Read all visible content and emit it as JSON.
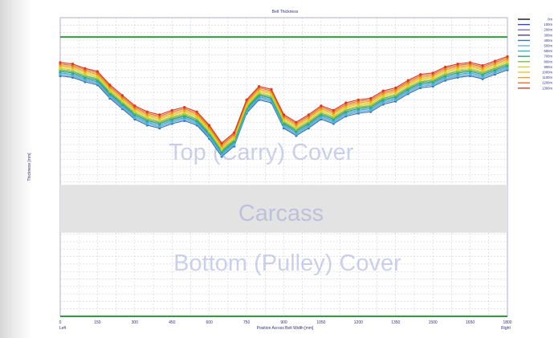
{
  "chart_data": {
    "type": "line",
    "title": "Belt Thickness",
    "xlabel": "Position Across Belt Width [mm]",
    "x_end_left": "Left",
    "x_end_right": "Right",
    "ylabel": "Thickness [mm]",
    "band_labels": {
      "top": "Top (Carry) Cover",
      "carcass": "Carcass",
      "bottom": "Bottom (Pulley) Cover"
    },
    "xlim": [
      0,
      1800
    ],
    "xticks": [
      "0",
      "150",
      "300",
      "450",
      "600",
      "750",
      "900",
      "1050",
      "1200",
      "1350",
      "1500",
      "1650",
      "1800"
    ],
    "ylim": [
      0,
      20
    ],
    "carcass_range": [
      5.6,
      8.8
    ],
    "bottom_limit": 0,
    "top_limit": 18.7,
    "legend_position": "right",
    "x": [
      0,
      50,
      100,
      150,
      200,
      250,
      300,
      350,
      400,
      450,
      500,
      550,
      600,
      650,
      700,
      750,
      800,
      850,
      900,
      950,
      1000,
      1050,
      1100,
      1150,
      1200,
      1250,
      1300,
      1350,
      1400,
      1450,
      1500,
      1550,
      1600,
      1650,
      1700,
      1750,
      1800
    ],
    "series": [
      {
        "name": "0m",
        "color": "#111111",
        "values": [
          16.5,
          16.4,
          16.1,
          15.9,
          15.0,
          14.3,
          13.6,
          13.2,
          13.0,
          13.3,
          13.5,
          13.2,
          12.3,
          11.1,
          11.8,
          14.0,
          14.9,
          14.7,
          13.0,
          12.5,
          13.0,
          13.6,
          13.3,
          13.8,
          14.0,
          14.1,
          14.6,
          14.8,
          15.3,
          15.7,
          15.8,
          16.2,
          16.4,
          16.5,
          16.3,
          16.6,
          16.9
        ]
      },
      {
        "name": "100m",
        "color": "#3a44b8",
        "values": [
          16.4,
          16.3,
          16.0,
          15.8,
          14.9,
          14.2,
          13.5,
          13.1,
          12.9,
          13.2,
          13.4,
          13.1,
          12.2,
          11.0,
          11.7,
          13.9,
          14.8,
          14.6,
          12.9,
          12.4,
          12.9,
          13.5,
          13.2,
          13.7,
          13.9,
          14.0,
          14.5,
          14.7,
          15.2,
          15.6,
          15.7,
          16.1,
          16.3,
          16.4,
          16.2,
          16.5,
          16.8
        ]
      },
      {
        "name": "200m",
        "color": "#8b6bc2",
        "values": [
          16.3,
          16.2,
          15.9,
          15.7,
          14.8,
          14.1,
          13.4,
          13.0,
          12.8,
          13.1,
          13.3,
          13.0,
          12.1,
          10.9,
          11.6,
          13.8,
          14.7,
          14.5,
          12.8,
          12.3,
          12.8,
          13.4,
          13.1,
          13.6,
          13.8,
          13.9,
          14.4,
          14.6,
          15.1,
          15.5,
          15.6,
          16.0,
          16.2,
          16.3,
          16.1,
          16.4,
          16.7
        ]
      },
      {
        "name": "300m",
        "color": "#5a3d8a",
        "values": [
          16.2,
          16.1,
          15.8,
          15.6,
          14.7,
          14.0,
          13.3,
          12.9,
          12.7,
          13.0,
          13.2,
          12.9,
          12.0,
          10.8,
          11.5,
          13.7,
          14.6,
          14.4,
          12.7,
          12.2,
          12.7,
          13.3,
          13.0,
          13.5,
          13.7,
          13.8,
          14.3,
          14.5,
          15.0,
          15.4,
          15.5,
          15.9,
          16.1,
          16.2,
          16.0,
          16.3,
          16.6
        ]
      },
      {
        "name": "400m",
        "color": "#2c7ab8",
        "values": [
          16.1,
          16.0,
          15.7,
          15.5,
          14.6,
          13.9,
          13.2,
          12.8,
          12.6,
          12.9,
          13.1,
          12.8,
          11.9,
          10.7,
          11.4,
          13.6,
          14.5,
          14.3,
          12.6,
          12.1,
          12.6,
          13.2,
          12.9,
          13.4,
          13.6,
          13.7,
          14.2,
          14.4,
          14.9,
          15.3,
          15.4,
          15.8,
          16.0,
          16.1,
          15.9,
          16.2,
          16.5
        ]
      },
      {
        "name": "500m",
        "color": "#6ab0dc",
        "values": [
          16.2,
          16.1,
          15.8,
          15.6,
          14.7,
          14.0,
          13.3,
          12.9,
          12.7,
          13.0,
          13.2,
          12.9,
          12.0,
          10.8,
          11.5,
          13.7,
          14.6,
          14.4,
          12.7,
          12.2,
          12.7,
          13.3,
          13.0,
          13.5,
          13.7,
          13.8,
          14.3,
          14.5,
          15.0,
          15.4,
          15.5,
          15.9,
          16.1,
          16.2,
          16.0,
          16.3,
          16.6
        ]
      },
      {
        "name": "600m",
        "color": "#2bb6d6",
        "values": [
          16.3,
          16.2,
          15.9,
          15.7,
          14.8,
          14.1,
          13.4,
          13.0,
          12.8,
          13.1,
          13.3,
          13.0,
          12.1,
          10.9,
          11.6,
          13.8,
          14.7,
          14.5,
          12.8,
          12.3,
          12.8,
          13.4,
          13.1,
          13.6,
          13.8,
          13.9,
          14.4,
          14.6,
          15.1,
          15.5,
          15.6,
          16.0,
          16.2,
          16.3,
          16.1,
          16.4,
          16.7
        ]
      },
      {
        "name": "700m",
        "color": "#2fa86a",
        "values": [
          16.4,
          16.3,
          16.0,
          15.8,
          14.9,
          14.2,
          13.5,
          13.1,
          12.9,
          13.2,
          13.4,
          13.1,
          12.2,
          11.0,
          11.7,
          13.9,
          14.8,
          14.6,
          12.9,
          12.4,
          12.9,
          13.5,
          13.2,
          13.7,
          13.9,
          14.0,
          14.5,
          14.7,
          15.2,
          15.6,
          15.7,
          16.1,
          16.3,
          16.4,
          16.2,
          16.5,
          16.8
        ]
      },
      {
        "name": "800m",
        "color": "#7cc242",
        "values": [
          16.5,
          16.4,
          16.1,
          15.9,
          15.0,
          14.3,
          13.6,
          13.2,
          13.0,
          13.3,
          13.5,
          13.2,
          12.3,
          11.1,
          11.8,
          14.0,
          14.9,
          14.7,
          13.0,
          12.5,
          13.0,
          13.6,
          13.3,
          13.8,
          14.0,
          14.1,
          14.6,
          14.8,
          15.3,
          15.7,
          15.8,
          16.2,
          16.4,
          16.5,
          16.3,
          16.6,
          16.9
        ]
      },
      {
        "name": "900m",
        "color": "#c8d43a",
        "values": [
          16.6,
          16.5,
          16.2,
          16.0,
          15.1,
          14.4,
          13.7,
          13.3,
          13.1,
          13.4,
          13.6,
          13.3,
          12.4,
          11.2,
          11.9,
          14.1,
          15.0,
          14.8,
          13.1,
          12.6,
          13.1,
          13.7,
          13.4,
          13.9,
          14.1,
          14.2,
          14.7,
          14.9,
          15.4,
          15.8,
          15.9,
          16.3,
          16.5,
          16.6,
          16.4,
          16.7,
          17.0
        ]
      },
      {
        "name": "1000m",
        "color": "#f0c419",
        "values": [
          16.7,
          16.6,
          16.3,
          16.1,
          15.2,
          14.5,
          13.8,
          13.4,
          13.2,
          13.5,
          13.7,
          13.4,
          12.5,
          11.3,
          12.0,
          14.2,
          15.1,
          14.9,
          13.2,
          12.7,
          13.2,
          13.8,
          13.5,
          14.0,
          14.2,
          14.3,
          14.8,
          15.0,
          15.5,
          15.9,
          16.0,
          16.4,
          16.6,
          16.7,
          16.5,
          16.8,
          17.1
        ]
      },
      {
        "name": "1100m",
        "color": "#f29c1f",
        "values": [
          16.8,
          16.7,
          16.4,
          16.2,
          15.3,
          14.6,
          13.9,
          13.5,
          13.3,
          13.6,
          13.8,
          13.5,
          12.6,
          11.4,
          12.1,
          14.3,
          15.2,
          15.0,
          13.3,
          12.8,
          13.3,
          13.9,
          13.6,
          14.1,
          14.3,
          14.4,
          14.9,
          15.1,
          15.6,
          16.0,
          16.1,
          16.5,
          16.7,
          16.8,
          16.6,
          16.9,
          17.2
        ]
      },
      {
        "name": "1200m",
        "color": "#e8702a",
        "values": [
          16.9,
          16.8,
          16.5,
          16.3,
          15.4,
          14.7,
          14.0,
          13.6,
          13.4,
          13.7,
          13.9,
          13.6,
          12.7,
          11.5,
          12.2,
          14.4,
          15.3,
          15.1,
          13.4,
          12.9,
          13.4,
          14.0,
          13.7,
          14.2,
          14.4,
          14.5,
          15.0,
          15.2,
          15.7,
          16.1,
          16.2,
          16.6,
          16.8,
          16.9,
          16.7,
          17.0,
          17.3
        ]
      },
      {
        "name": "1300m",
        "color": "#d63b2a",
        "values": [
          17.0,
          16.9,
          16.6,
          16.4,
          15.5,
          14.8,
          14.1,
          13.7,
          13.5,
          13.8,
          14.0,
          13.7,
          12.8,
          11.6,
          12.3,
          14.5,
          15.4,
          15.2,
          13.5,
          13.0,
          13.5,
          14.1,
          13.8,
          14.3,
          14.5,
          14.6,
          15.1,
          15.3,
          15.8,
          16.2,
          16.3,
          16.7,
          16.9,
          17.0,
          16.8,
          17.1,
          17.4
        ]
      }
    ]
  }
}
